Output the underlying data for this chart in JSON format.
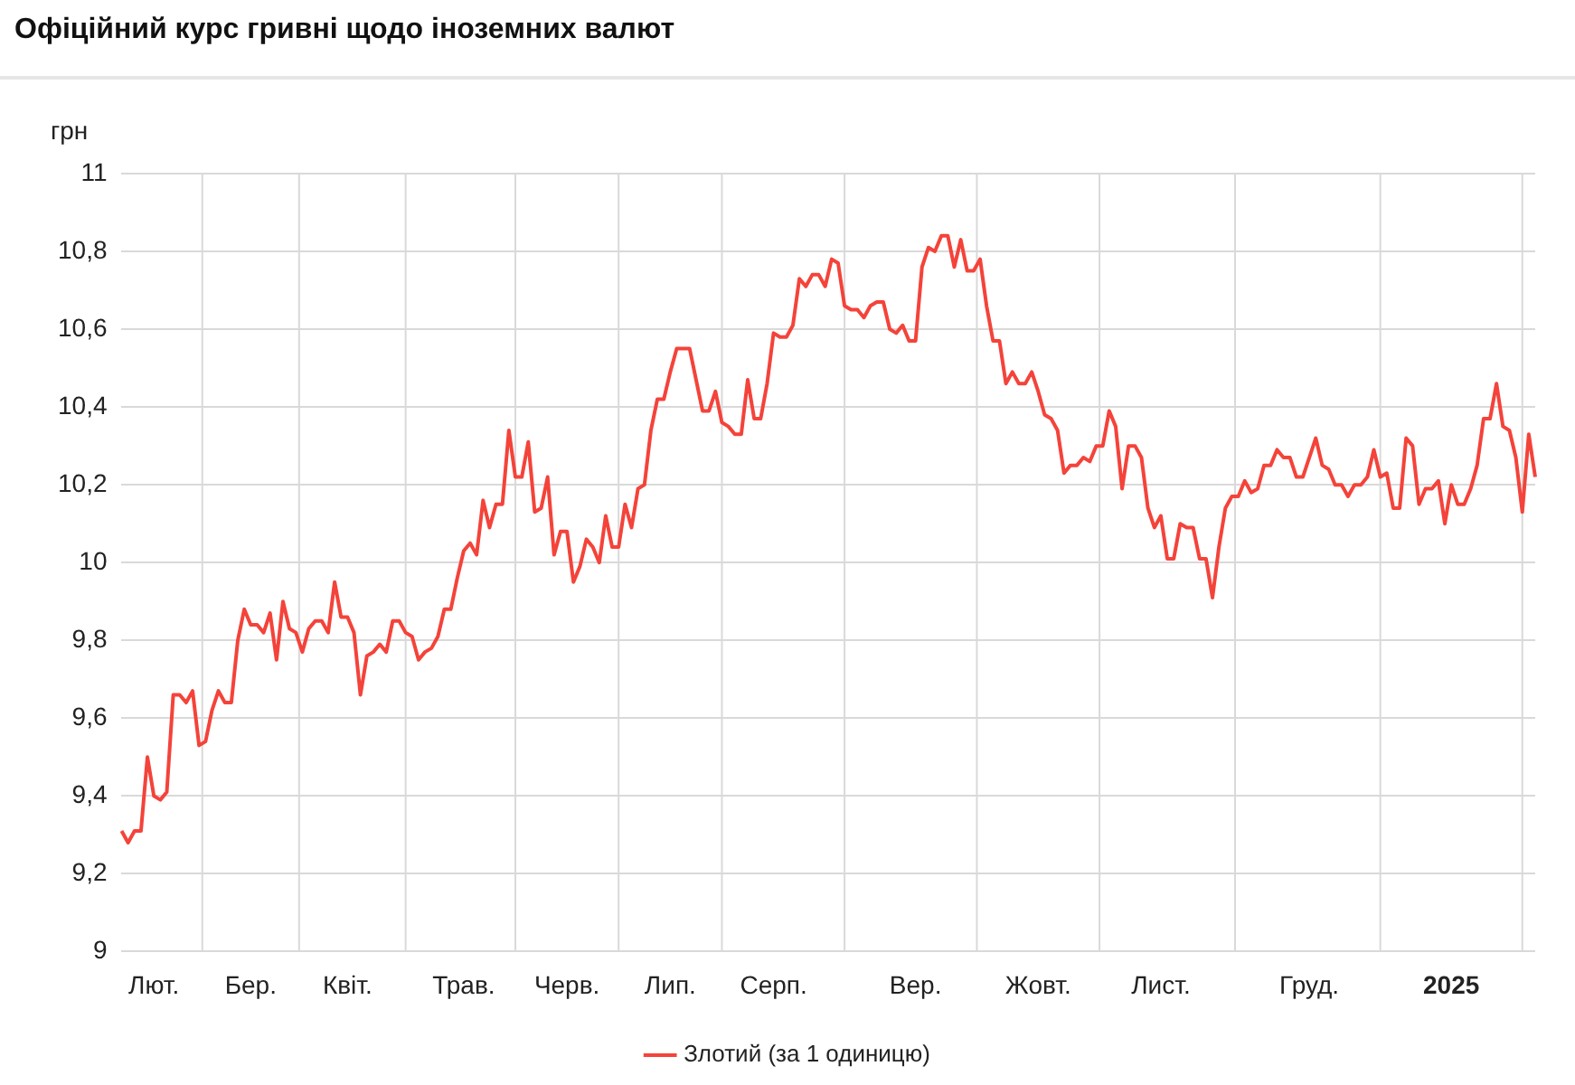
{
  "chart_data": {
    "type": "line",
    "title": "Офіційний курс гривні щодо іноземних валют",
    "ylabel": "грн",
    "categories": [
      null,
      null,
      null,
      null,
      null,
      "Лют.",
      null,
      null,
      null,
      null,
      null,
      null,
      null,
      null,
      null,
      null,
      null,
      null,
      null,
      null,
      "Бер.",
      null,
      null,
      null,
      null,
      null,
      null,
      null,
      null,
      null,
      null,
      null,
      null,
      null,
      null,
      "Квіт.",
      null,
      null,
      null,
      null,
      null,
      null,
      null,
      null,
      null,
      null,
      null,
      null,
      null,
      null,
      null,
      null,
      null,
      "Трав.",
      null,
      null,
      null,
      null,
      null,
      null,
      null,
      null,
      null,
      null,
      null,
      null,
      null,
      null,
      null,
      "Черв.",
      null,
      null,
      null,
      null,
      null,
      null,
      null,
      null,
      null,
      null,
      null,
      null,
      null,
      null,
      null,
      "Лип.",
      null,
      null,
      null,
      null,
      null,
      null,
      null,
      null,
      null,
      null,
      null,
      null,
      null,
      null,
      null,
      "Серп.",
      null,
      null,
      null,
      null,
      null,
      null,
      null,
      null,
      null,
      null,
      null,
      null,
      null,
      null,
      null,
      null,
      null,
      null,
      null,
      null,
      null,
      "Вер.",
      null,
      null,
      null,
      null,
      null,
      null,
      null,
      null,
      null,
      null,
      null,
      null,
      null,
      null,
      null,
      null,
      null,
      null,
      "Жовт.",
      null,
      null,
      null,
      null,
      null,
      null,
      null,
      null,
      null,
      null,
      null,
      null,
      null,
      null,
      null,
      null,
      null,
      null,
      "Лист.",
      null,
      null,
      null,
      null,
      null,
      null,
      null,
      null,
      null,
      null,
      null,
      null,
      null,
      null,
      null,
      null,
      null,
      null,
      null,
      null,
      null,
      null,
      "Груд.",
      null,
      null,
      null,
      null,
      null,
      null,
      null,
      null,
      null,
      null,
      null,
      null,
      null,
      null,
      null,
      null,
      null,
      null,
      null,
      null,
      null,
      "2025",
      null,
      null,
      null,
      null,
      null,
      null,
      null,
      null,
      null,
      null,
      null,
      null,
      null
    ],
    "series": [
      {
        "name": "Злотий (за 1 одиницю)",
        "color": "#f4433a",
        "values": [
          9.31,
          9.28,
          9.31,
          9.31,
          9.5,
          9.4,
          9.39,
          9.41,
          9.66,
          9.66,
          9.64,
          9.67,
          9.53,
          9.54,
          9.62,
          9.67,
          9.64,
          9.64,
          9.8,
          9.88,
          9.84,
          9.84,
          9.82,
          9.87,
          9.75,
          9.9,
          9.83,
          9.82,
          9.77,
          9.83,
          9.85,
          9.85,
          9.82,
          9.95,
          9.86,
          9.86,
          9.82,
          9.66,
          9.76,
          9.77,
          9.79,
          9.77,
          9.85,
          9.85,
          9.82,
          9.81,
          9.75,
          9.77,
          9.78,
          9.81,
          9.88,
          9.88,
          9.96,
          10.03,
          10.05,
          10.02,
          10.16,
          10.09,
          10.15,
          10.15,
          10.34,
          10.22,
          10.22,
          10.31,
          10.13,
          10.14,
          10.22,
          10.02,
          10.08,
          10.08,
          9.95,
          9.99,
          10.06,
          10.04,
          10.0,
          10.12,
          10.04,
          10.04,
          10.15,
          10.09,
          10.19,
          10.2,
          10.34,
          10.42,
          10.42,
          10.49,
          10.55,
          10.55,
          10.55,
          10.47,
          10.39,
          10.39,
          10.44,
          10.36,
          10.35,
          10.33,
          10.33,
          10.47,
          10.37,
          10.37,
          10.46,
          10.59,
          10.58,
          10.58,
          10.61,
          10.73,
          10.71,
          10.74,
          10.74,
          10.71,
          10.78,
          10.77,
          10.66,
          10.65,
          10.65,
          10.63,
          10.66,
          10.67,
          10.67,
          10.6,
          10.59,
          10.61,
          10.57,
          10.57,
          10.76,
          10.81,
          10.8,
          10.84,
          10.84,
          10.76,
          10.83,
          10.75,
          10.75,
          10.78,
          10.66,
          10.57,
          10.57,
          10.46,
          10.49,
          10.46,
          10.46,
          10.49,
          10.44,
          10.38,
          10.37,
          10.34,
          10.23,
          10.25,
          10.25,
          10.27,
          10.26,
          10.3,
          10.3,
          10.39,
          10.35,
          10.19,
          10.3,
          10.3,
          10.27,
          10.14,
          10.09,
          10.12,
          10.01,
          10.01,
          10.1,
          10.09,
          10.09,
          10.01,
          10.01,
          9.91,
          10.04,
          10.14,
          10.17,
          10.17,
          10.21,
          10.18,
          10.19,
          10.25,
          10.25,
          10.29,
          10.27,
          10.27,
          10.22,
          10.22,
          10.27,
          10.32,
          10.25,
          10.24,
          10.2,
          10.2,
          10.17,
          10.2,
          10.2,
          10.22,
          10.29,
          10.22,
          10.23,
          10.14,
          10.14,
          10.32,
          10.3,
          10.15,
          10.19,
          10.19,
          10.21,
          10.1,
          10.2,
          10.15,
          10.15,
          10.19,
          10.25,
          10.37,
          10.37,
          10.46,
          10.35,
          10.34,
          10.27,
          10.13,
          10.33,
          10.22
        ]
      }
    ],
    "ylim": [
      9,
      11
    ],
    "yticks": [
      9,
      {
        "value": 9.2,
        "label": "9,2"
      },
      {
        "value": 9.4,
        "label": "9,4"
      },
      {
        "value": 9.6,
        "label": "9,6"
      },
      {
        "value": 9.8,
        "label": "9,8"
      },
      10,
      {
        "value": 10.2,
        "label": "10,2"
      },
      {
        "value": 10.4,
        "label": "10,4"
      },
      {
        "value": 10.6,
        "label": "10,6"
      },
      {
        "value": 10.8,
        "label": "10,8"
      },
      11
    ],
    "grid": true,
    "legend": "bottom",
    "marker": "none",
    "line_style": "solid"
  }
}
